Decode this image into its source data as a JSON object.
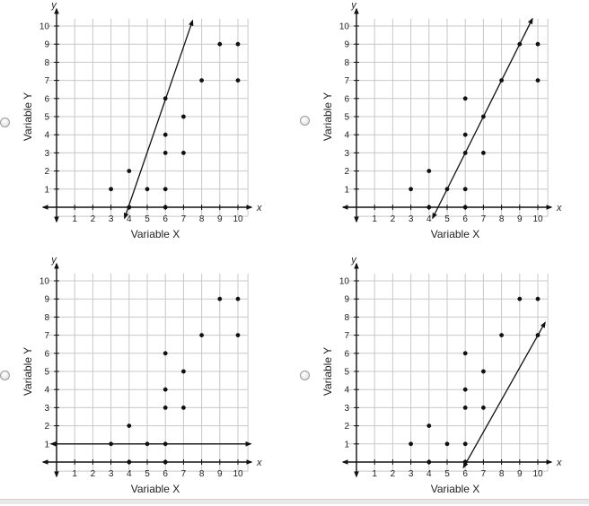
{
  "options": [
    {
      "id": "A"
    },
    {
      "id": "B"
    },
    {
      "id": "C"
    },
    {
      "id": "D"
    }
  ],
  "chart_data": [
    {
      "type": "scatter",
      "xlabel": "Variable X",
      "ylabel": "Variable Y",
      "x_axis_letter": "x",
      "y_axis_letter": "y",
      "xticks": [
        "1",
        "2",
        "3",
        "4",
        "5",
        "6",
        "7",
        "8",
        "9",
        "10"
      ],
      "yticks": [
        "1",
        "2",
        "3",
        "4",
        "5",
        "6",
        "7",
        "8",
        "9",
        "10"
      ],
      "xlim": [
        -0.3,
        10.7
      ],
      "ylim": [
        -0.5,
        10.5
      ],
      "grid": true,
      "points": [
        [
          3,
          1
        ],
        [
          4,
          2
        ],
        [
          4,
          0
        ],
        [
          5,
          1
        ],
        [
          6,
          0
        ],
        [
          6,
          1
        ],
        [
          6,
          3
        ],
        [
          6,
          4
        ],
        [
          6,
          6
        ],
        [
          7,
          3
        ],
        [
          7,
          5
        ],
        [
          8,
          7
        ],
        [
          9,
          9
        ],
        [
          10,
          9
        ],
        [
          10,
          7
        ]
      ],
      "line": {
        "from": [
          3.75,
          -0.6
        ],
        "to": [
          7.5,
          10.3
        ]
      }
    },
    {
      "type": "scatter",
      "xlabel": "Variable X",
      "ylabel": "Variable Y",
      "x_axis_letter": "x",
      "y_axis_letter": "y",
      "xticks": [
        "1",
        "2",
        "3",
        "4",
        "5",
        "6",
        "7",
        "8",
        "9",
        "10"
      ],
      "yticks": [
        "1",
        "2",
        "3",
        "4",
        "5",
        "6",
        "7",
        "8",
        "9",
        "10"
      ],
      "xlim": [
        -0.3,
        10.7
      ],
      "ylim": [
        -0.5,
        10.5
      ],
      "grid": true,
      "points": [
        [
          3,
          1
        ],
        [
          4,
          2
        ],
        [
          4,
          0
        ],
        [
          5,
          1
        ],
        [
          6,
          0
        ],
        [
          6,
          1
        ],
        [
          6,
          3
        ],
        [
          6,
          4
        ],
        [
          6,
          6
        ],
        [
          7,
          3
        ],
        [
          7,
          5
        ],
        [
          8,
          7
        ],
        [
          9,
          9
        ],
        [
          10,
          9
        ],
        [
          10,
          7
        ]
      ],
      "line": {
        "from": [
          4.2,
          -0.6
        ],
        "to": [
          9.7,
          10.4
        ]
      }
    },
    {
      "type": "scatter",
      "xlabel": "Variable X",
      "ylabel": "Variable Y",
      "x_axis_letter": "x",
      "y_axis_letter": "y",
      "xticks": [
        "1",
        "2",
        "3",
        "4",
        "5",
        "6",
        "7",
        "8",
        "9",
        "10"
      ],
      "yticks": [
        "1",
        "2",
        "3",
        "4",
        "5",
        "6",
        "7",
        "8",
        "9",
        "10"
      ],
      "xlim": [
        -0.3,
        10.7
      ],
      "ylim": [
        -0.5,
        10.5
      ],
      "grid": true,
      "points": [
        [
          3,
          1
        ],
        [
          4,
          2
        ],
        [
          4,
          0
        ],
        [
          5,
          1
        ],
        [
          6,
          0
        ],
        [
          6,
          1
        ],
        [
          6,
          3
        ],
        [
          6,
          4
        ],
        [
          6,
          6
        ],
        [
          7,
          3
        ],
        [
          7,
          5
        ],
        [
          8,
          7
        ],
        [
          9,
          9
        ],
        [
          10,
          9
        ],
        [
          10,
          7
        ]
      ],
      "line": {
        "from": [
          -0.3,
          1
        ],
        "to": [
          10.7,
          1
        ]
      }
    },
    {
      "type": "scatter",
      "xlabel": "Variable X",
      "ylabel": "Variable Y",
      "x_axis_letter": "x",
      "y_axis_letter": "y",
      "xticks": [
        "1",
        "2",
        "3",
        "4",
        "5",
        "6",
        "7",
        "8",
        "9",
        "10"
      ],
      "yticks": [
        "1",
        "2",
        "3",
        "4",
        "5",
        "6",
        "7",
        "8",
        "9",
        "10"
      ],
      "xlim": [
        -0.3,
        10.7
      ],
      "ylim": [
        -0.5,
        10.5
      ],
      "grid": true,
      "points": [
        [
          3,
          1
        ],
        [
          4,
          2
        ],
        [
          4,
          0
        ],
        [
          5,
          1
        ],
        [
          6,
          0
        ],
        [
          6,
          1
        ],
        [
          6,
          3
        ],
        [
          6,
          4
        ],
        [
          6,
          6
        ],
        [
          7,
          3
        ],
        [
          7,
          5
        ],
        [
          8,
          7
        ],
        [
          9,
          9
        ],
        [
          10,
          9
        ],
        [
          10,
          7
        ]
      ],
      "line": {
        "from": [
          5.9,
          -0.3
        ],
        "to": [
          10.4,
          7.7
        ]
      }
    }
  ]
}
